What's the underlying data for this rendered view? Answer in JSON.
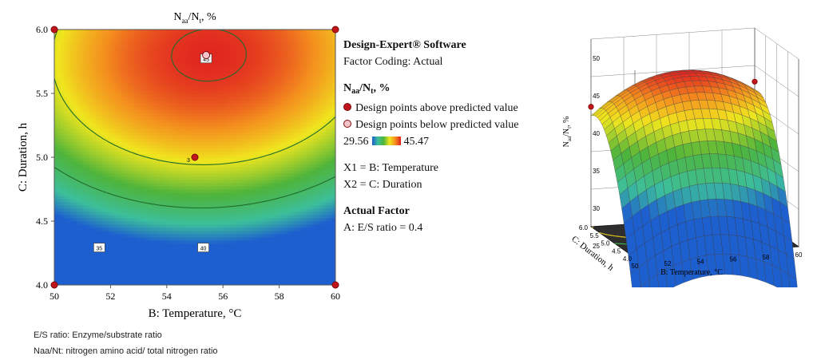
{
  "contour_chart": {
    "title_main": "N",
    "title_sub1": "aa",
    "title_mid": "/N",
    "title_sub2": "t",
    "title_tail": ", %",
    "xlabel": "B: Temperature, °C",
    "ylabel": "C: Duration, h",
    "contour_labels": [
      "35",
      "40",
      "45"
    ],
    "design_point_labels": [
      "3"
    ]
  },
  "legend": {
    "software": "Design-Expert® Software",
    "coding": "Factor Coding: Actual",
    "resp_main": "N",
    "resp_sub1": "aa",
    "resp_mid": "/N",
    "resp_sub2": "t",
    "resp_tail": ", %",
    "above_label": "Design points above predicted value",
    "below_label": "Design points below predicted value",
    "range_min": "29.56",
    "range_max": "45.47",
    "x1": "X1 = B: Temperature",
    "x2": "X2 = C: Duration",
    "actual_factor_title": "Actual Factor",
    "actual_factor_value": "A: E/S ratio = 0.4"
  },
  "notes": {
    "line1": "E/S ratio: Enzyme/substrate ratio",
    "line2": "Naa/Nt: nitrogen amino acid/ total nitrogen ratio"
  },
  "surface_chart": {
    "xlabel": "B: Temperature, °C",
    "ylabel": "C: Duration, h",
    "zlabel_main": "N",
    "zlabel_sub1": "aa",
    "zlabel_mid": "/N",
    "zlabel_sub2": "t",
    "zlabel_tail": ", %"
  },
  "colors": {
    "low": "#1d5fcf",
    "mid": "#4eb43b",
    "high": "#e02020",
    "point_above": "#c0161b",
    "point_below": "#f3c4c9"
  },
  "chart_data": [
    {
      "type": "heatmap",
      "subtype": "contour",
      "xlim": [
        50,
        60
      ],
      "ylim": [
        4.0,
        6.0
      ],
      "xticks": [
        50,
        52,
        54,
        56,
        58,
        60
      ],
      "yticks": [
        4.0,
        4.5,
        5.0,
        5.5,
        6.0
      ],
      "zlim": [
        29.56,
        45.47
      ],
      "contour_levels": [
        35,
        40,
        45
      ],
      "design_points": [
        {
          "x": 50,
          "y": 6.0,
          "type": "above"
        },
        {
          "x": 60,
          "y": 6.0,
          "type": "above"
        },
        {
          "x": 50,
          "y": 4.0,
          "type": "above"
        },
        {
          "x": 60,
          "y": 4.0,
          "type": "above"
        },
        {
          "x": 55,
          "y": 5.0,
          "type": "above",
          "label": "3"
        },
        {
          "x": 55.4,
          "y": 5.8,
          "type": "below"
        }
      ]
    },
    {
      "type": "surface",
      "xlim": [
        50,
        60
      ],
      "ylim": [
        4.0,
        6.0
      ],
      "zlim": [
        25,
        50
      ],
      "xticks": [
        50,
        52,
        54,
        56,
        58,
        60
      ],
      "yticks": [
        4.0,
        4.5,
        5.0,
        5.5,
        6.0
      ],
      "zticks": [
        25,
        30,
        35,
        40,
        45,
        50
      ],
      "grid": true
    }
  ]
}
